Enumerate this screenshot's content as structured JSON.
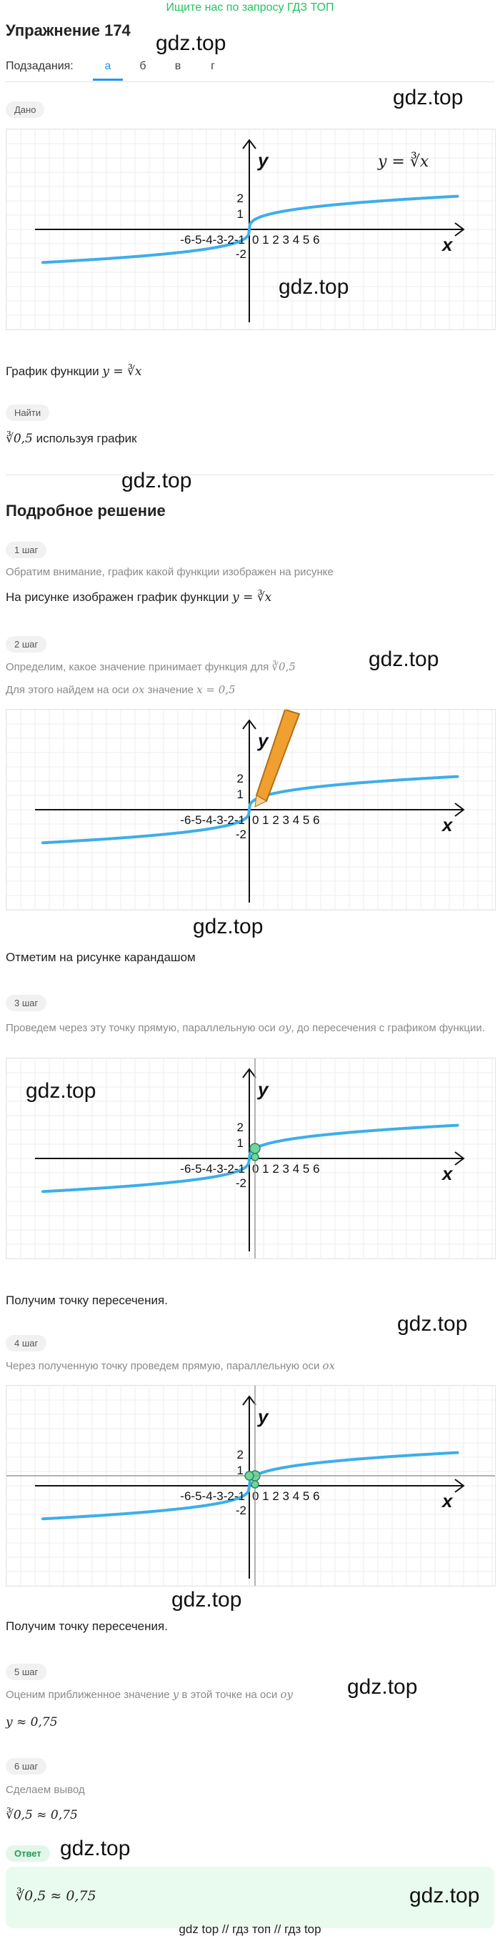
{
  "top_link": "Ищите нас по запросу ГДЗ ТОП",
  "title": "Упражнение 174",
  "watermark": "gdz.top",
  "subtasks": {
    "label": "Подзадания:",
    "tabs": [
      "а",
      "б",
      "в",
      "г"
    ],
    "active": "а"
  },
  "given": {
    "badge": "Дано",
    "text": "График функции ",
    "formula": "y = ∛x",
    "graph_label": "y = ∛x"
  },
  "find": {
    "badge": "Найти",
    "expr": "∛0,5",
    "text": " используя график"
  },
  "solution_title": "Подробное решение",
  "axes": {
    "x_label": "x",
    "y_label": "y",
    "neg_ticks": "-6-5-4-3-2-1",
    "pos_ticks": "0 1 2 3 4 5 6",
    "y_pos": [
      "2",
      "1"
    ],
    "y_neg": [
      "-1",
      "-2"
    ],
    "curve_color": "#3daee9",
    "pencil_color": "#f0a030",
    "marker_color": "#6fd6a0"
  },
  "steps": [
    {
      "badge": "1 шаг",
      "hint": "Обратим внимание, график какой функции изображен на рисунке",
      "text": "На рисунке изображен график функции ",
      "formula": "y = ∛x"
    },
    {
      "badge": "2 шаг",
      "hint": "Определим, какое значение принимает функция для ",
      "hint_formula": "∛0,5",
      "hint2": "Для этого найдем на оси ",
      "hint2_axis": "ox",
      "hint2_text": " значение ",
      "hint2_formula": "x = 0,5",
      "text": "Отметим на рисунке карандашом"
    },
    {
      "badge": "3 шаг",
      "hint": "Проведем через эту точку прямую, параллельную оси ",
      "hint_axis": "oy",
      "hint_tail": ", до пересечения с графиком функции.",
      "text": "Получим точку пересечения."
    },
    {
      "badge": "4 шаг",
      "hint": "Через полученную точку проведем прямую, параллельную оси ",
      "hint_axis": "ox",
      "text": "Получим точку пересечения."
    },
    {
      "badge": "5 шаг",
      "hint": "Оценим приближенное значение ",
      "hint_var": "y",
      "hint_tail": " в этой точке на оси ",
      "hint_axis": "oy",
      "formula": "y ≈ 0,75"
    },
    {
      "badge": "6 шаг",
      "hint": "Сделаем вывод",
      "formula": "∛0,5 ≈ 0,75"
    }
  ],
  "answer": {
    "badge": "Ответ",
    "formula": "∛0,5 ≈ 0,75"
  },
  "footer": "gdz top // гдз топ // гдз top"
}
